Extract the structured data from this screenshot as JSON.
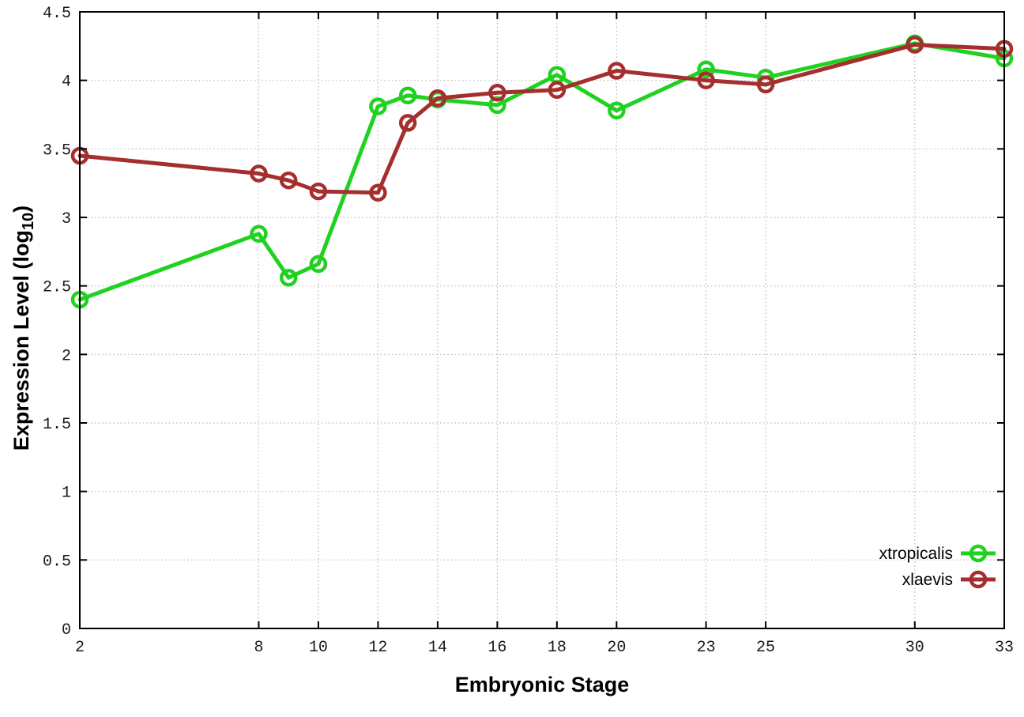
{
  "chart_data": {
    "type": "line",
    "title": "",
    "xlabel": "Embryonic Stage",
    "ylabel": "Expression Level (log10)",
    "ylabel_parts": {
      "main": "Expression Level (log",
      "sub": "10",
      "end": ")"
    },
    "xlim": [
      2,
      33
    ],
    "ylim": [
      0,
      4.5
    ],
    "grid": true,
    "legend_position": "bottom-right-inside",
    "x": [
      2,
      8,
      9,
      10,
      12,
      13,
      14,
      16,
      18,
      20,
      23,
      25,
      30,
      33
    ],
    "series": [
      {
        "name": "xtropicalis",
        "color": "#21d121",
        "marker": "open-circle",
        "values": [
          2.4,
          2.88,
          2.56,
          2.66,
          3.81,
          3.89,
          3.86,
          3.82,
          4.04,
          3.78,
          4.08,
          4.02,
          4.27,
          4.16
        ]
      },
      {
        "name": "xlaevis",
        "color": "#a52e2e",
        "marker": "open-circle",
        "values": [
          3.45,
          3.32,
          3.27,
          3.19,
          3.18,
          3.69,
          3.87,
          3.91,
          3.93,
          4.07,
          4.0,
          3.97,
          4.26,
          4.23
        ]
      }
    ],
    "x_ticks": {
      "values": [
        2,
        8,
        10,
        12,
        14,
        16,
        18,
        20,
        23,
        25,
        30,
        33
      ],
      "labels": [
        "2",
        "8",
        "10",
        "12",
        "14",
        "16",
        "18",
        "20",
        "23",
        "25",
        "30",
        "33"
      ]
    },
    "y_ticks": {
      "values": [
        0,
        0.5,
        1,
        1.5,
        2,
        2.5,
        3,
        3.5,
        4,
        4.5
      ],
      "labels": [
        "0",
        "0.5",
        "1",
        "1.5",
        "2",
        "2.5",
        "3",
        "3.5",
        "4",
        "4.5"
      ]
    },
    "colors": {
      "background": "#ffffff",
      "grid": "#b8b8b8",
      "axis": "#000000",
      "tick_text": "#1a1a1a"
    }
  }
}
